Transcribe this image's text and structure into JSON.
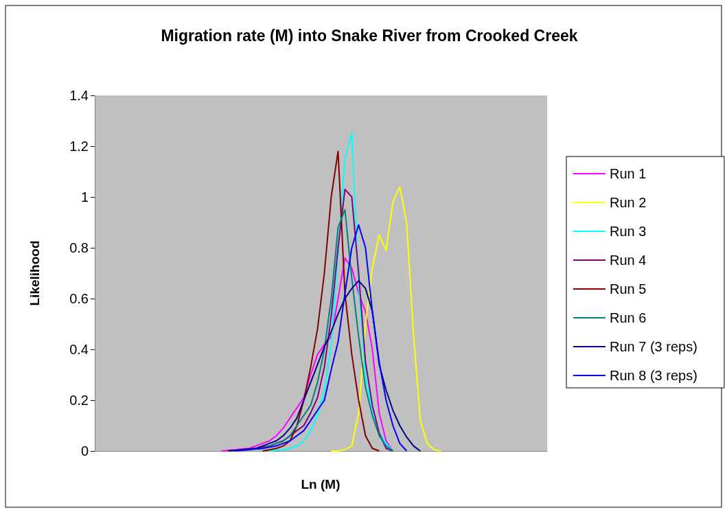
{
  "chart_data": {
    "type": "line",
    "title": "Migration rate (M) into Snake River from Crooked Creek",
    "xlabel": "Ln (M)",
    "ylabel": "Likelihood",
    "categories": [
      null,
      null,
      null,
      null,
      null,
      null,
      null,
      null,
      null,
      null,
      null,
      null,
      null,
      null,
      null,
      null,
      null,
      null,
      null,
      null,
      null,
      null,
      null,
      null,
      null,
      null,
      null,
      null,
      null,
      null,
      null,
      null,
      null,
      null,
      null,
      null,
      null,
      null,
      null,
      null,
      null,
      null,
      null,
      null,
      null,
      null,
      null,
      null,
      null,
      null,
      null,
      null,
      null,
      null,
      null,
      null,
      null,
      null,
      null,
      null,
      null,
      null,
      null,
      null,
      null,
      null
    ],
    "ylim": [
      0,
      1.4
    ],
    "yticks": [
      0,
      0.2,
      0.4,
      0.6,
      0.8,
      1,
      1.2,
      1.4
    ],
    "tick_labels": "y",
    "grid": false,
    "legend": "right",
    "line_style": "solid",
    "series": [
      {
        "name": "Run 1",
        "color": "#ff00ff",
        "values": [
          null,
          null,
          null,
          null,
          null,
          null,
          null,
          null,
          null,
          null,
          null,
          null,
          null,
          null,
          null,
          null,
          null,
          null,
          0,
          0.003,
          0.005,
          0.008,
          0.01,
          0.02,
          0.03,
          0.04,
          0.06,
          0.09,
          0.13,
          0.17,
          0.21,
          0.3,
          0.38,
          0.42,
          0.45,
          0.6,
          0.76,
          0.72,
          0.62,
          0.55,
          0.4,
          0.15,
          0.04,
          0,
          null,
          null,
          null,
          null,
          null,
          null,
          null,
          null,
          null,
          null,
          null,
          null,
          null,
          null,
          null,
          null,
          null,
          null,
          null,
          null,
          null,
          null
        ]
      },
      {
        "name": "Run 2",
        "color": "#ffff00",
        "values": [
          null,
          null,
          null,
          null,
          null,
          null,
          null,
          null,
          null,
          null,
          null,
          null,
          null,
          null,
          null,
          null,
          null,
          null,
          null,
          null,
          null,
          null,
          null,
          null,
          null,
          null,
          null,
          null,
          null,
          null,
          null,
          null,
          null,
          null,
          0,
          0,
          0.005,
          0.02,
          0.15,
          0.5,
          0.72,
          0.85,
          0.79,
          0.98,
          1.04,
          0.9,
          0.46,
          0.12,
          0.03,
          0.005,
          0,
          null,
          null,
          null,
          null,
          null,
          null,
          null,
          null,
          null,
          null,
          null,
          null,
          null,
          null,
          null
        ]
      },
      {
        "name": "Run 3",
        "color": "#00ffff",
        "values": [
          null,
          null,
          null,
          null,
          null,
          null,
          null,
          null,
          null,
          null,
          null,
          null,
          null,
          null,
          null,
          null,
          null,
          null,
          null,
          null,
          null,
          null,
          null,
          null,
          null,
          0,
          0.003,
          0.005,
          0.01,
          0.02,
          0.04,
          0.08,
          0.14,
          0.24,
          0.42,
          0.78,
          1.15,
          1.25,
          0.65,
          0.3,
          0.15,
          0.07,
          0.03,
          0,
          null,
          null,
          null,
          null,
          null,
          null,
          null,
          null,
          null,
          null,
          null,
          null,
          null,
          null,
          null,
          null,
          null,
          null,
          null,
          null,
          null,
          null
        ]
      },
      {
        "name": "Run 4",
        "color": "#800080",
        "values": [
          null,
          null,
          null,
          null,
          null,
          null,
          null,
          null,
          null,
          null,
          null,
          null,
          null,
          null,
          null,
          null,
          null,
          null,
          null,
          0,
          0.003,
          0.005,
          0.008,
          0.01,
          0.015,
          0.02,
          0.03,
          0.04,
          0.06,
          0.08,
          0.1,
          0.15,
          0.21,
          0.33,
          0.53,
          0.8,
          1.03,
          1.0,
          0.7,
          0.35,
          0.18,
          0.07,
          0.01,
          0,
          null,
          null,
          null,
          null,
          null,
          null,
          null,
          null,
          null,
          null,
          null,
          null,
          null,
          null,
          null,
          null,
          null,
          null,
          null,
          null,
          null,
          null
        ]
      },
      {
        "name": "Run 5",
        "color": "#800000",
        "values": [
          null,
          null,
          null,
          null,
          null,
          null,
          null,
          null,
          null,
          null,
          null,
          null,
          null,
          null,
          null,
          null,
          null,
          null,
          null,
          null,
          null,
          null,
          null,
          null,
          0,
          0.005,
          0.01,
          0.02,
          0.04,
          0.1,
          0.2,
          0.33,
          0.48,
          0.7,
          1.0,
          1.18,
          0.62,
          0.38,
          0.2,
          0.06,
          0.01,
          0,
          null,
          null,
          null,
          null,
          null,
          null,
          null,
          null,
          null,
          null,
          null,
          null,
          null,
          null,
          null,
          null,
          null,
          null,
          null,
          null,
          null,
          null,
          null,
          null
        ]
      },
      {
        "name": "Run 6",
        "color": "#008080",
        "values": [
          null,
          null,
          null,
          null,
          null,
          null,
          null,
          null,
          null,
          null,
          null,
          null,
          null,
          null,
          null,
          null,
          null,
          null,
          null,
          null,
          null,
          null,
          null,
          0.008,
          0.01,
          0.02,
          0.03,
          0.04,
          0.06,
          0.1,
          0.14,
          0.18,
          0.27,
          0.4,
          0.6,
          0.88,
          0.95,
          0.68,
          0.45,
          0.25,
          0.14,
          0.06,
          0.02,
          0,
          null,
          null,
          null,
          null,
          null,
          null,
          null,
          null,
          null,
          null,
          null,
          null,
          null,
          null,
          null,
          null,
          null,
          null,
          null,
          null,
          null,
          null
        ]
      },
      {
        "name": "Run 7 (3 reps)",
        "color": "#000080",
        "values": [
          null,
          null,
          null,
          null,
          null,
          null,
          null,
          null,
          null,
          null,
          null,
          null,
          null,
          null,
          null,
          null,
          null,
          null,
          null,
          0,
          0.003,
          0.005,
          0.008,
          0.01,
          0.02,
          0.03,
          0.04,
          0.06,
          0.09,
          0.13,
          0.2,
          0.27,
          0.34,
          0.41,
          0.47,
          0.54,
          0.6,
          0.64,
          0.67,
          0.64,
          0.55,
          0.34,
          0.24,
          0.16,
          0.1,
          0.055,
          0.02,
          0,
          null,
          null,
          null,
          null,
          null,
          null,
          null,
          null,
          null,
          null,
          null,
          null,
          null,
          null,
          null,
          null,
          null,
          null
        ]
      },
      {
        "name": "Run 8 (3 reps)",
        "color": "#0000ff",
        "values": [
          null,
          null,
          null,
          null,
          null,
          null,
          null,
          null,
          null,
          null,
          null,
          null,
          null,
          null,
          null,
          null,
          null,
          null,
          null,
          null,
          0,
          0.003,
          0.005,
          0.008,
          0.01,
          0.015,
          0.02,
          0.03,
          0.04,
          0.06,
          0.08,
          0.12,
          0.16,
          0.2,
          0.32,
          0.43,
          0.62,
          0.8,
          0.89,
          0.8,
          0.55,
          0.35,
          0.2,
          0.1,
          0.03,
          0,
          null,
          null,
          null,
          null,
          null,
          null,
          null,
          null,
          null,
          null,
          null,
          null,
          null,
          null,
          null,
          null,
          null,
          null,
          null,
          null
        ]
      }
    ]
  }
}
